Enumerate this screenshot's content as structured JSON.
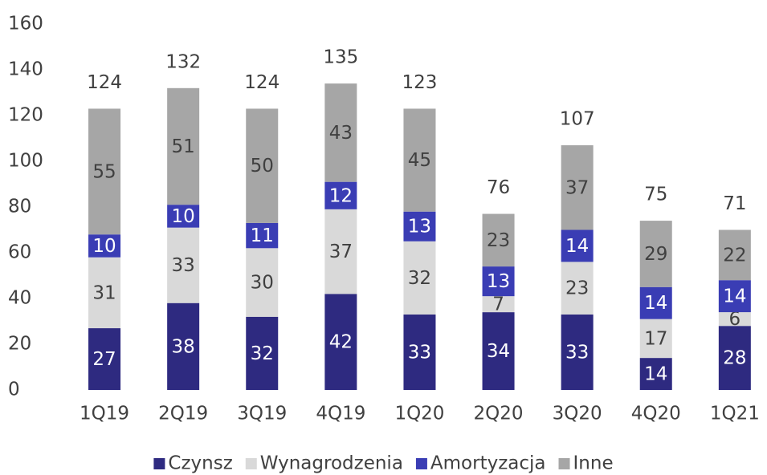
{
  "chart_data": {
    "type": "stacked_bar",
    "categories": [
      "1Q19",
      "2Q19",
      "3Q19",
      "4Q19",
      "1Q20",
      "2Q20",
      "3Q20",
      "4Q20",
      "1Q21"
    ],
    "series": [
      {
        "name": "Czynsz",
        "color": "#2e2a80",
        "values": [
          27,
          38,
          32,
          42,
          33,
          34,
          33,
          14,
          28
        ]
      },
      {
        "name": "Wynagrodzenia",
        "color": "#d9d9d9",
        "values": [
          31,
          33,
          30,
          37,
          32,
          7,
          23,
          17,
          6
        ]
      },
      {
        "name": "Amortyzacja",
        "color": "#3a3db4",
        "values": [
          10,
          10,
          11,
          12,
          13,
          13,
          14,
          14,
          14
        ]
      },
      {
        "name": "Inne",
        "color": "#a6a6a6",
        "values": [
          55,
          51,
          50,
          43,
          45,
          23,
          37,
          29,
          22
        ]
      }
    ],
    "totals": [
      124,
      132,
      124,
      135,
      123,
      76,
      107,
      75,
      71
    ],
    "ylim": [
      0,
      160
    ],
    "yticks": [
      0,
      20,
      40,
      60,
      80,
      100,
      120,
      140,
      160
    ],
    "grid": false
  }
}
